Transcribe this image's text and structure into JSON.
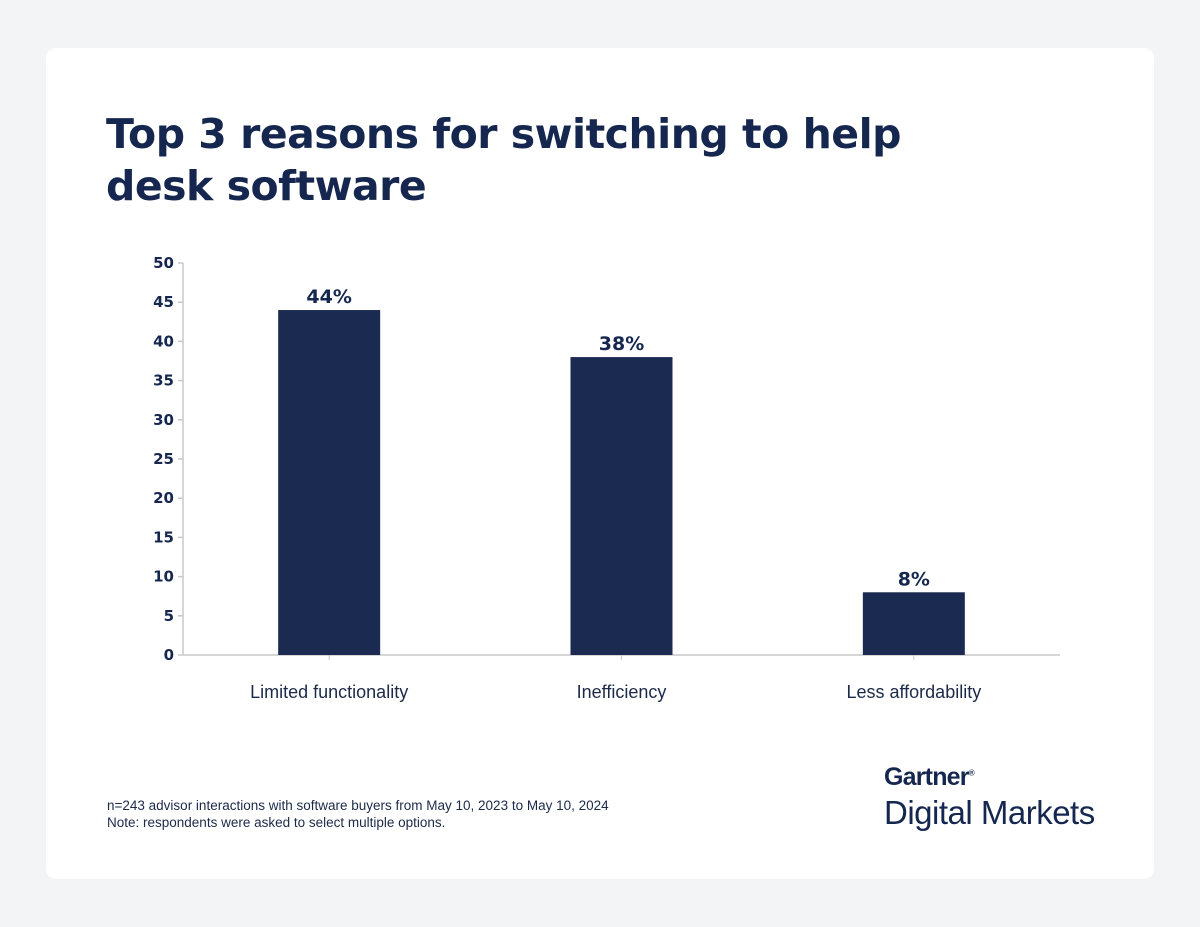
{
  "title": "Top 3 reasons for switching to help desk software",
  "chart_data": {
    "type": "bar",
    "title": "Top 3 reasons for switching to help desk software",
    "categories": [
      "Limited functionality",
      "Inefficiency",
      "Less affordability"
    ],
    "values": [
      44,
      38,
      8
    ],
    "data_labels": [
      "44%",
      "38%",
      "8%"
    ],
    "xlabel": "",
    "ylabel": "",
    "ylim": [
      0,
      50
    ],
    "yticks": [
      0,
      5,
      10,
      15,
      20,
      25,
      30,
      35,
      40,
      45,
      50
    ],
    "grid": false,
    "bar_color": "#1a2a50"
  },
  "footnote": {
    "line1": "n=243 advisor interactions with software buyers from May 10, 2023 to May 10, 2024",
    "line2": "Note: respondents were asked to select multiple options."
  },
  "logo": {
    "brand": "Gartner",
    "product": "Digital Markets"
  }
}
